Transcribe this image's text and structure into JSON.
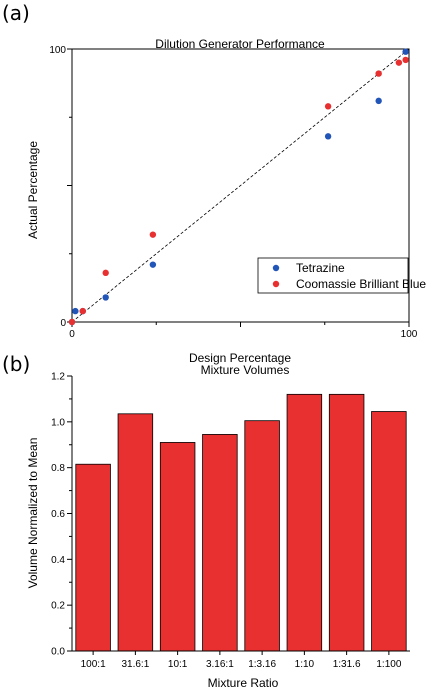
{
  "panels": {
    "a_label": "(a)",
    "b_label": "(b)"
  },
  "chart_data": [
    {
      "type": "scatter",
      "title": "Dilution Generator Performance",
      "xlabel": "Design Percentage",
      "ylabel": "Actual Percentage",
      "xlim": [
        0,
        100
      ],
      "ylim": [
        0,
        100
      ],
      "xticks": [
        "0",
        "100"
      ],
      "yticks": [
        "0",
        "100"
      ],
      "reference_line": "y = x (dashed)",
      "legend_position": "bottom-right",
      "series": [
        {
          "name": "Tetrazine",
          "color": "#2255b8",
          "x": [
            0,
            1,
            3.2,
            10,
            24,
            76,
            91,
            99
          ],
          "y": [
            0,
            4,
            4,
            9,
            21,
            68,
            81,
            99
          ]
        },
        {
          "name": "Coomassie Brilliant Blue",
          "color": "#e83030",
          "x": [
            0,
            3.2,
            10,
            24,
            76,
            91,
            97,
            99
          ],
          "y": [
            0,
            4,
            18,
            32,
            79,
            91,
            95,
            96
          ]
        }
      ]
    },
    {
      "type": "bar",
      "title": "Mixture Volumes",
      "xlabel": "Mixture Ratio",
      "ylabel": "Volume Normalized to Mean",
      "ylim": [
        0.0,
        1.2
      ],
      "yticks": [
        "0.0",
        "0.2",
        "0.4",
        "0.6",
        "0.8",
        "1.0",
        "1.2"
      ],
      "categories": [
        "100:1",
        "31.6:1",
        "10:1",
        "3.16:1",
        "1:3.16",
        "1:10",
        "1:31.6",
        "1:100"
      ],
      "values": [
        0.815,
        1.035,
        0.91,
        0.945,
        1.005,
        1.12,
        1.12,
        1.045
      ],
      "bar_color": "#e83030"
    }
  ]
}
